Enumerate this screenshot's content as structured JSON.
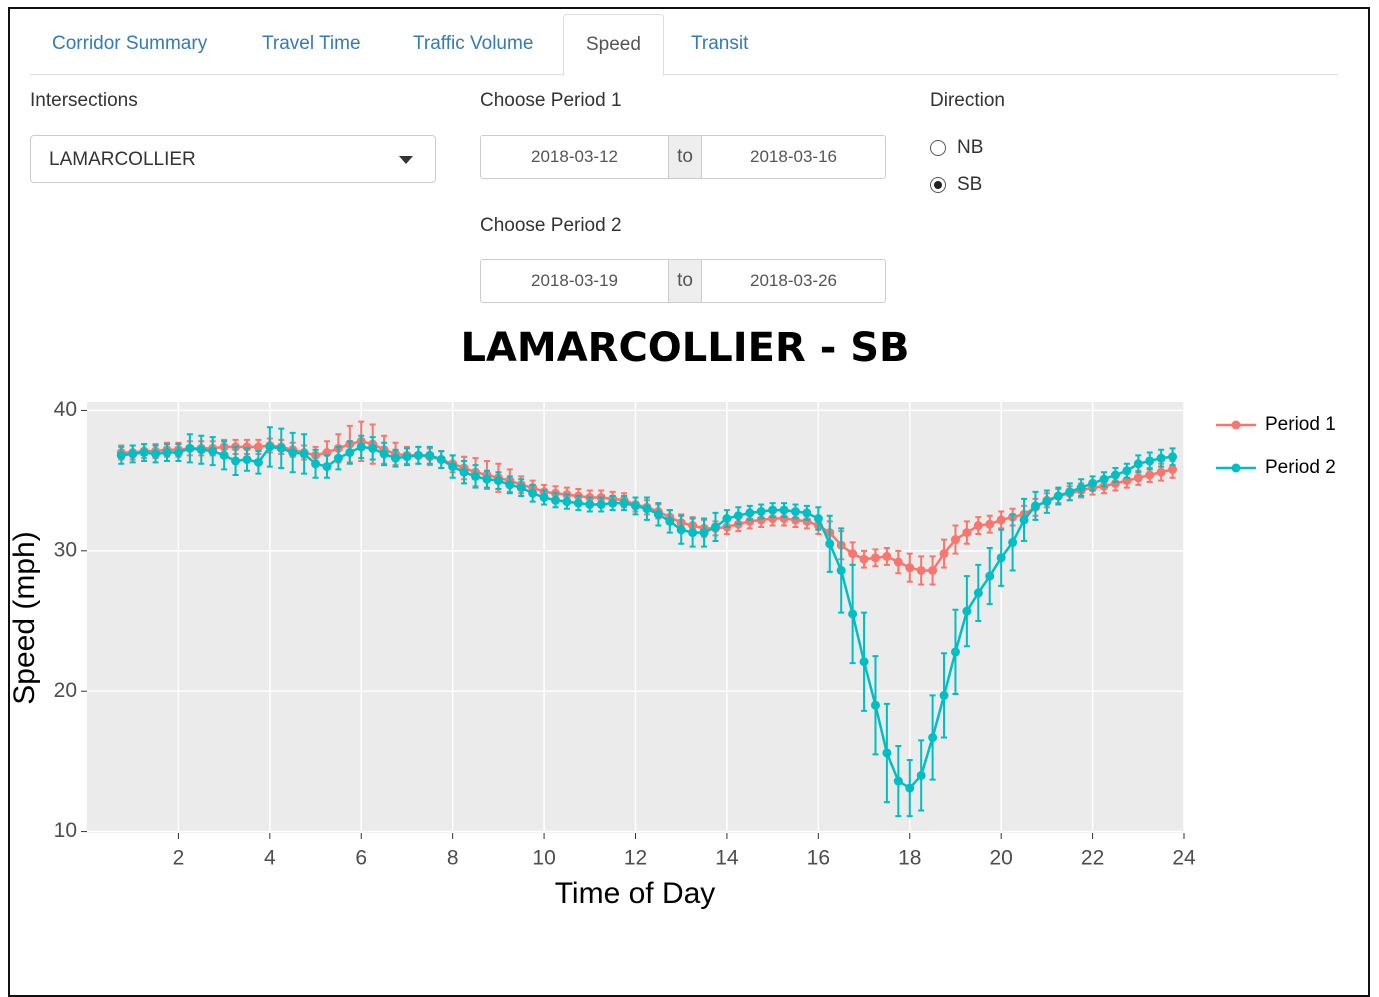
{
  "tabs": {
    "items": [
      "Corridor Summary",
      "Travel Time",
      "Traffic Volume",
      "Speed",
      "Transit"
    ],
    "active": 3
  },
  "intersections": {
    "label": "Intersections",
    "value": "LAMARCOLLIER"
  },
  "period1": {
    "label": "Choose Period 1",
    "start": "2018-03-12",
    "sep": "to",
    "end": "2018-03-16"
  },
  "period2": {
    "label": "Choose Period 2",
    "start": "2018-03-19",
    "sep": "to",
    "end": "2018-03-26"
  },
  "direction": {
    "label": "Direction",
    "options": [
      "NB",
      "SB"
    ],
    "selected": 1
  },
  "chart_data": {
    "type": "line",
    "title": "LAMARCOLLIER - SB",
    "x_label": "Time of Day",
    "y_label": "Speed (mph)",
    "xlim": [
      0,
      24
    ],
    "xticks": [
      2,
      4,
      6,
      8,
      10,
      12,
      14,
      16,
      18,
      20,
      22,
      24
    ],
    "ylim": [
      9.9,
      40.6
    ],
    "yticks": [
      10,
      20,
      30,
      40
    ],
    "grid": true,
    "legend": "right",
    "x": [
      0.75,
      1,
      1.25,
      1.5,
      1.75,
      2,
      2.25,
      2.5,
      2.75,
      3,
      3.25,
      3.5,
      3.75,
      4,
      4.25,
      4.5,
      4.75,
      5,
      5.25,
      5.5,
      5.75,
      6,
      6.25,
      6.5,
      6.75,
      7,
      7.25,
      7.5,
      7.75,
      8,
      8.25,
      8.5,
      8.75,
      9,
      9.25,
      9.5,
      9.75,
      10,
      10.25,
      10.5,
      10.75,
      11,
      11.25,
      11.5,
      11.75,
      12,
      12.25,
      12.5,
      12.75,
      13,
      13.25,
      13.5,
      13.75,
      14,
      14.25,
      14.5,
      14.75,
      15,
      15.25,
      15.5,
      15.75,
      16,
      16.25,
      16.5,
      16.75,
      17,
      17.25,
      17.5,
      17.75,
      18,
      18.25,
      18.5,
      18.75,
      19,
      19.25,
      19.5,
      19.75,
      20,
      20.25,
      20.5,
      20.75,
      21,
      21.25,
      21.5,
      21.75,
      22,
      22.25,
      22.5,
      22.75,
      23,
      23.25,
      23.5,
      23.75
    ],
    "series": [
      {
        "name": "Period 1",
        "color": "#f8766d",
        "values": [
          37,
          37,
          37.1,
          37.1,
          37.2,
          37.2,
          37.3,
          37.3,
          37.3,
          37.4,
          37.4,
          37.4,
          37.4,
          37.5,
          37.4,
          37.2,
          37,
          36.8,
          37,
          37.3,
          37.6,
          37.8,
          37.6,
          37.2,
          36.9,
          36.8,
          36.8,
          36.7,
          36.5,
          36.2,
          35.9,
          35.6,
          35.4,
          35.2,
          35,
          34.7,
          34.5,
          34.2,
          34.1,
          34,
          33.9,
          33.8,
          33.8,
          33.7,
          33.6,
          33.3,
          33.1,
          32.8,
          32.4,
          32,
          31.8,
          31.6,
          31.6,
          31.7,
          31.9,
          32.1,
          32.2,
          32.3,
          32.3,
          32.2,
          32.1,
          31.8,
          31.3,
          30.4,
          29.8,
          29.4,
          29.5,
          29.6,
          29.2,
          28.8,
          28.6,
          28.6,
          29.8,
          30.8,
          31.3,
          31.8,
          31.9,
          32.2,
          32.4,
          32.6,
          33.1,
          33.6,
          33.9,
          34.1,
          34.3,
          34.5,
          34.6,
          34.8,
          35,
          35.2,
          35.4,
          35.6,
          35.8
        ],
        "errors": [
          0.5,
          0.5,
          0.5,
          0.5,
          0.5,
          0.5,
          0.5,
          0.5,
          0.5,
          0.5,
          0.5,
          0.5,
          0.5,
          0.5,
          0.5,
          0.5,
          0.5,
          0.6,
          0.8,
          1,
          1.3,
          1.4,
          1.4,
          1,
          0.8,
          0.6,
          0.6,
          0.6,
          0.6,
          0.6,
          0.8,
          1,
          1,
          1,
          0.8,
          0.6,
          0.5,
          0.5,
          0.5,
          0.5,
          0.5,
          0.5,
          0.5,
          0.5,
          0.5,
          0.5,
          0.5,
          0.5,
          0.5,
          0.6,
          0.6,
          0.6,
          0.5,
          0.5,
          0.5,
          0.5,
          0.5,
          0.5,
          0.5,
          0.5,
          0.5,
          0.6,
          0.8,
          1,
          0.8,
          0.6,
          0.6,
          0.6,
          0.8,
          1,
          1,
          1,
          1,
          1,
          0.8,
          0.6,
          0.6,
          0.6,
          0.6,
          0.6,
          0.6,
          0.5,
          0.5,
          0.5,
          0.5,
          0.5,
          0.5,
          0.5,
          0.5,
          0.5,
          0.5,
          0.6,
          0.6
        ]
      },
      {
        "name": "Period 2",
        "color": "#00bfc4",
        "values": [
          36.8,
          36.9,
          37,
          36.9,
          37,
          37,
          37.3,
          37.2,
          37.1,
          36.8,
          36.4,
          36.5,
          36.3,
          37.4,
          37.3,
          37,
          36.9,
          36.2,
          36,
          36.6,
          37,
          37.4,
          37.3,
          36.9,
          36.6,
          36.7,
          36.8,
          36.8,
          36.5,
          36,
          35.6,
          35.3,
          35.1,
          35,
          34.7,
          34.5,
          34.1,
          33.8,
          33.6,
          33.5,
          33.4,
          33.3,
          33.3,
          33.4,
          33.4,
          33.2,
          33,
          32.6,
          32.1,
          31.5,
          31.3,
          31.3,
          31.7,
          32.3,
          32.5,
          32.7,
          32.8,
          32.9,
          32.9,
          32.8,
          32.7,
          32.3,
          30.5,
          28.6,
          25.5,
          22.1,
          19,
          15.6,
          13.6,
          13.1,
          14,
          16.7,
          19.7,
          22.8,
          25.7,
          27,
          28.2,
          29.5,
          30.6,
          32.2,
          33.2,
          33.5,
          33.9,
          34.2,
          34.5,
          34.8,
          35.1,
          35.4,
          35.7,
          36.2,
          36.4,
          36.6,
          36.7
        ],
        "errors": [
          0.6,
          0.6,
          0.6,
          0.6,
          0.6,
          0.6,
          1,
          1,
          1,
          1,
          1,
          0.8,
          0.8,
          1.4,
          1.4,
          1.4,
          1.4,
          1,
          0.8,
          0.8,
          0.8,
          0.8,
          0.8,
          0.8,
          0.6,
          0.6,
          0.6,
          0.6,
          0.6,
          0.8,
          0.8,
          0.8,
          0.6,
          0.6,
          0.6,
          0.6,
          0.6,
          0.5,
          0.5,
          0.5,
          0.5,
          0.5,
          0.5,
          0.5,
          0.5,
          0.6,
          0.8,
          0.8,
          0.8,
          1,
          1,
          1,
          1,
          0.6,
          0.6,
          0.5,
          0.5,
          0.5,
          0.5,
          0.5,
          0.5,
          0.8,
          2,
          3,
          3.5,
          3.5,
          3.5,
          3.5,
          2.5,
          2,
          2.5,
          3,
          3,
          3,
          2.5,
          2,
          2,
          2,
          2,
          1.5,
          1,
          0.8,
          0.6,
          0.6,
          0.6,
          0.5,
          0.5,
          0.5,
          0.5,
          0.6,
          0.6,
          0.6,
          0.6
        ]
      }
    ]
  }
}
